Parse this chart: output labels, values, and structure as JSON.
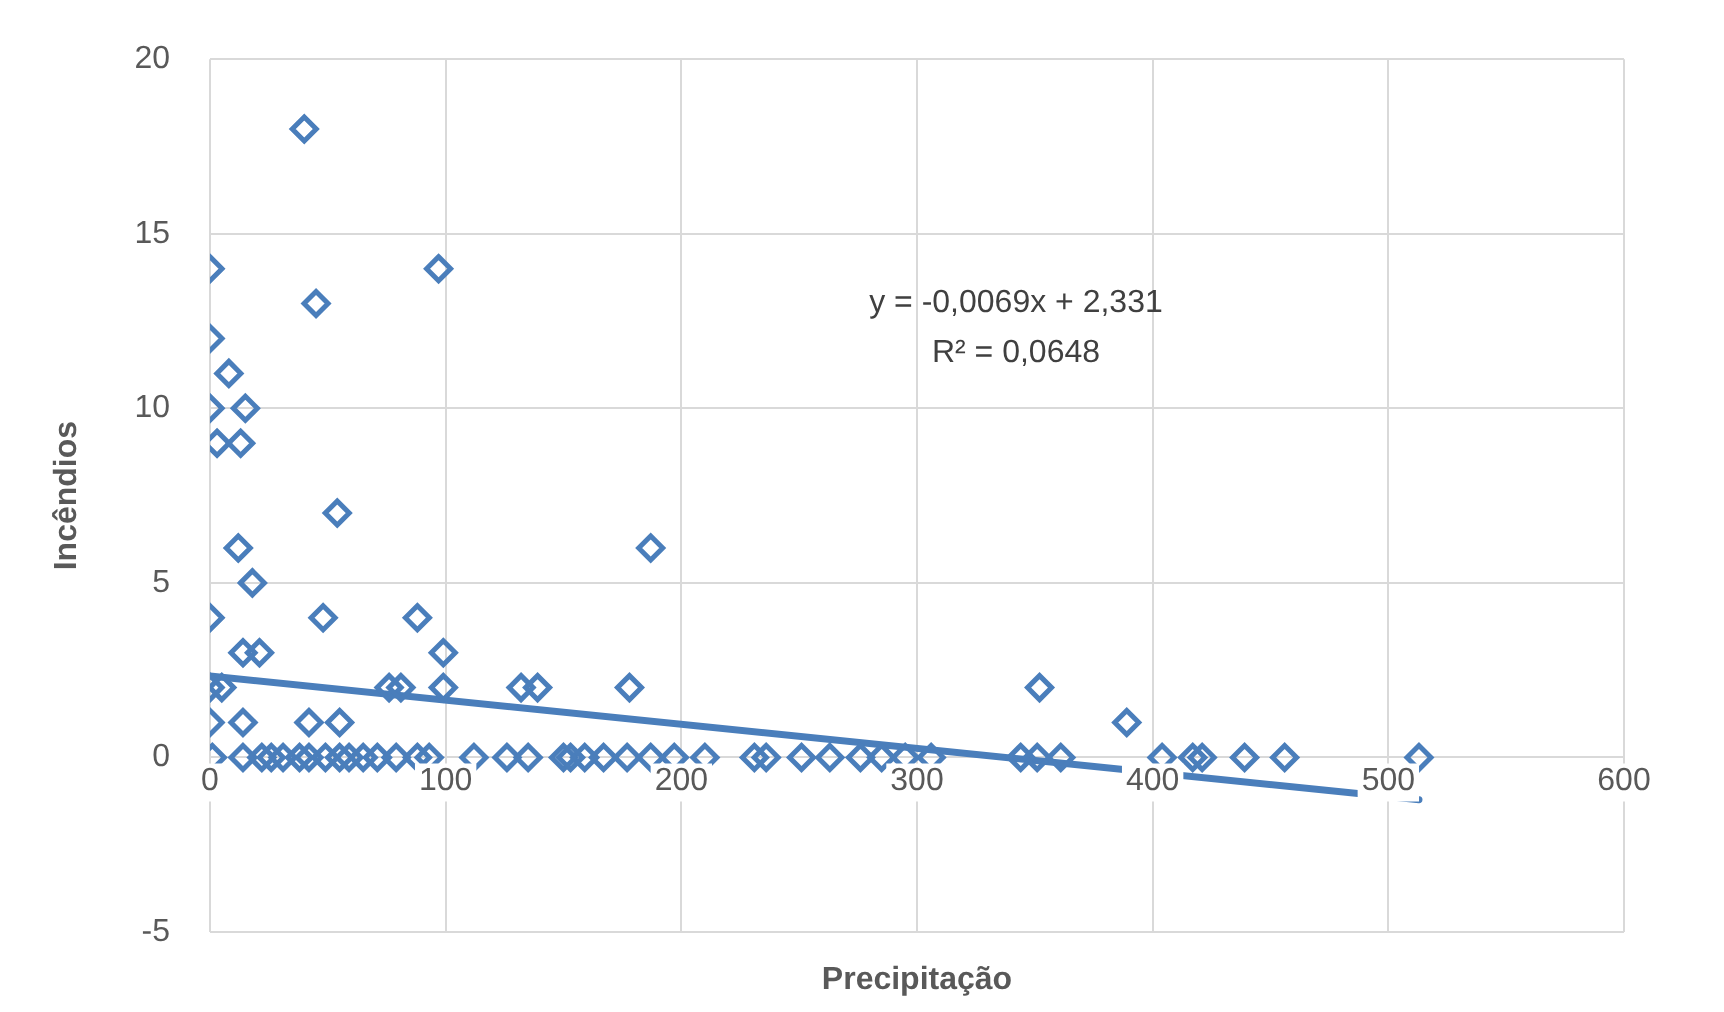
{
  "chart_data": {
    "type": "scatter",
    "xlabel": "Precipitação",
    "ylabel": "Incêndios",
    "xlim": [
      0,
      600
    ],
    "xticks": [
      0,
      100,
      200,
      300,
      400,
      500,
      600
    ],
    "ylim": [
      -5,
      20
    ],
    "yticks": [
      -5,
      0,
      5,
      10,
      15,
      20
    ],
    "grid": true,
    "annotations": [
      "y = -0,0069x + 2,331",
      "R² = 0,0648"
    ],
    "series": [
      {
        "color": "#4a7ebb",
        "marker": "diamond",
        "x": [
          40,
          0,
          97,
          45,
          0,
          8,
          0,
          15,
          3,
          13,
          54,
          12,
          187,
          18,
          0,
          48,
          88,
          14,
          21,
          99,
          0,
          5,
          76,
          81,
          99,
          132,
          139,
          178,
          352,
          0,
          14,
          42,
          55,
          389,
          1,
          14,
          22,
          26,
          31,
          38,
          42,
          49,
          55,
          59,
          65,
          71,
          79,
          88,
          93,
          112,
          126,
          135,
          150,
          159,
          153,
          167,
          177,
          187,
          197,
          210,
          231,
          236,
          251,
          263,
          276,
          285,
          295,
          306,
          344,
          351,
          361,
          404,
          417,
          421,
          439,
          456,
          513
        ],
        "values": [
          18,
          14,
          14,
          13,
          12,
          11,
          10,
          10,
          9,
          9,
          7,
          6,
          6,
          5,
          4,
          4,
          4,
          3,
          3,
          3,
          2,
          2,
          2,
          2,
          2,
          2,
          2,
          2,
          2,
          1,
          1,
          1,
          1,
          1,
          0,
          0,
          0,
          0,
          0,
          0,
          0,
          0,
          0,
          0,
          0,
          0,
          0,
          0,
          0,
          0,
          0,
          0,
          0,
          0,
          0,
          0,
          0,
          0,
          0,
          0,
          0,
          0,
          0,
          0,
          0,
          0,
          0,
          0,
          0,
          0,
          0,
          0,
          0,
          0,
          0,
          0,
          0
        ]
      },
      {
        "type": "line",
        "color": "#4a7ebb",
        "x": [
          0,
          513
        ],
        "values": [
          2.33,
          -1.21
        ]
      }
    ]
  }
}
